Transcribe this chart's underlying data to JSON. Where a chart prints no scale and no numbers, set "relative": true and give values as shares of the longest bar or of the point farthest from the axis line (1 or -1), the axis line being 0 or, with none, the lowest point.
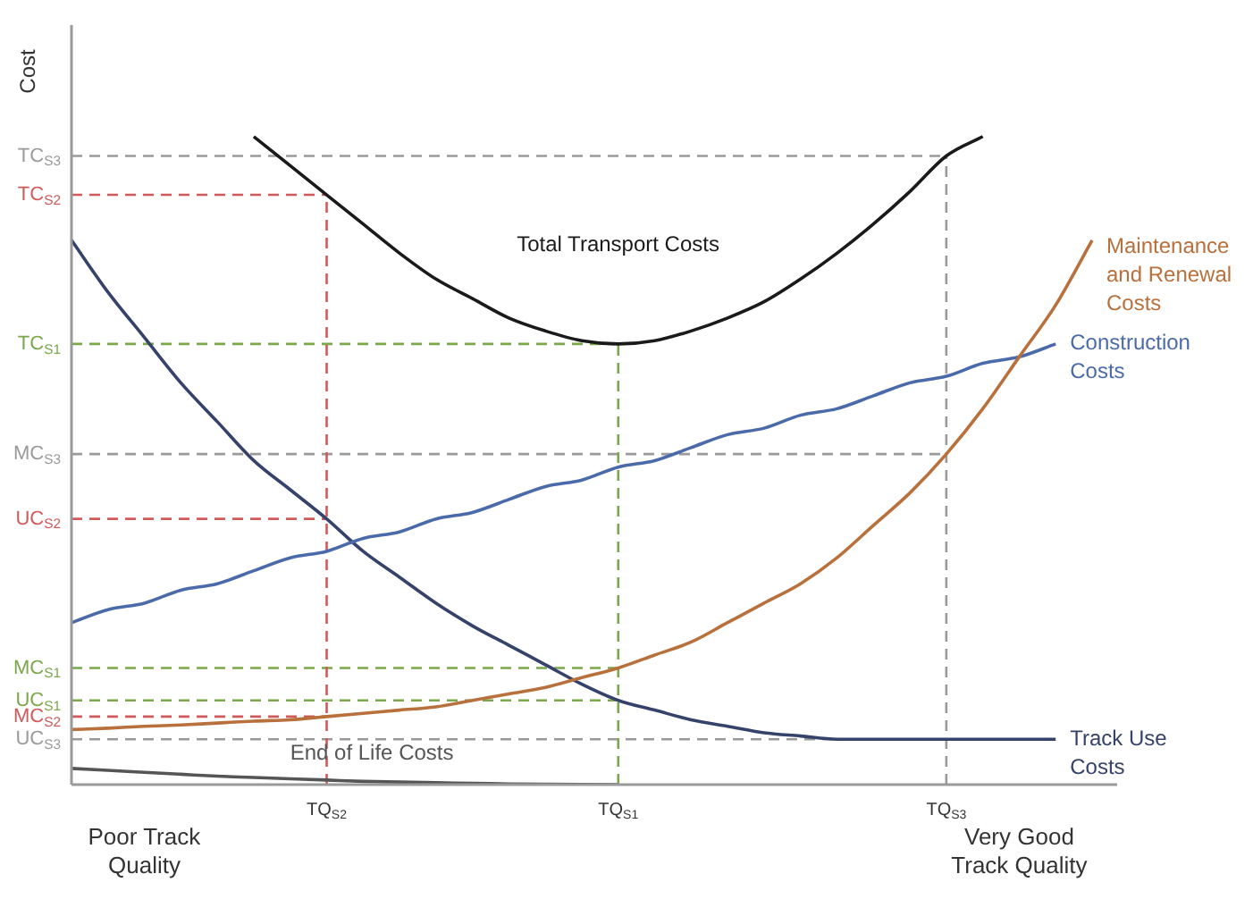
{
  "chart_data": {
    "type": "line",
    "relative": true,
    "ylabel": "Cost",
    "grid": false,
    "legend": false,
    "categories": [
      null,
      null,
      "Poor Track Quality",
      null,
      null,
      null,
      null,
      "TQ$_{S2}$",
      null,
      null,
      null,
      null,
      null,
      null,
      null,
      "TQ$_{S1}$",
      null,
      null,
      null,
      null,
      null,
      null,
      null,
      null,
      "TQ$_{S3}$",
      null,
      "Very Good Track Quality",
      null,
      null
    ],
    "series": [
      {
        "name": "Total Transport Costs",
        "color": "#1a1a1a",
        "values": [
          null,
          null,
          null,
          null,
          null,
          1.0,
          0.955,
          0.91,
          0.865,
          0.82,
          0.78,
          0.75,
          0.72,
          0.7,
          0.685,
          0.68,
          0.685,
          0.7,
          0.72,
          0.745,
          0.78,
          0.82,
          0.865,
          0.915,
          0.97,
          1.0,
          null,
          null,
          null
        ]
      },
      {
        "name": "Maintenance and Renewal Costs",
        "color": "#b8703c",
        "values": [
          0.085,
          0.087,
          0.09,
          0.092,
          0.095,
          0.098,
          0.1,
          0.105,
          0.11,
          0.115,
          0.12,
          0.13,
          0.14,
          0.15,
          0.165,
          0.18,
          0.2,
          0.22,
          0.25,
          0.28,
          0.31,
          0.35,
          0.4,
          0.45,
          0.51,
          0.58,
          0.66,
          0.74,
          0.84
        ]
      },
      {
        "name": "Construction Costs",
        "color": "#4a6aaa",
        "values": [
          0.25,
          0.27,
          0.28,
          0.3,
          0.31,
          0.33,
          0.35,
          0.36,
          0.38,
          0.39,
          0.41,
          0.42,
          0.44,
          0.46,
          0.47,
          0.49,
          0.5,
          0.52,
          0.54,
          0.55,
          0.57,
          0.58,
          0.6,
          0.62,
          0.63,
          0.65,
          0.66,
          0.68,
          null
        ]
      },
      {
        "name": "Track Use Costs",
        "color": "#35426a",
        "values": [
          0.84,
          0.76,
          0.69,
          0.62,
          0.56,
          0.5,
          0.455,
          0.41,
          0.36,
          0.32,
          0.28,
          0.245,
          0.215,
          0.185,
          0.155,
          0.13,
          0.115,
          0.1,
          0.09,
          0.08,
          0.075,
          0.07,
          0.07,
          0.07,
          0.07,
          0.07,
          0.07,
          0.07,
          null
        ]
      },
      {
        "name": "End of Life Costs",
        "color": "#555555",
        "values": [
          0.025,
          0.022,
          0.019,
          0.016,
          0.013,
          0.011,
          0.009,
          0.007,
          0.005,
          0.004,
          0.003,
          0.002,
          0.001,
          0.0005,
          0.0002,
          0,
          null,
          null,
          null,
          null,
          null,
          null,
          null,
          null,
          null,
          null,
          null,
          null,
          null
        ]
      }
    ],
    "ref_lines": [
      {
        "axis": "y",
        "value": 0.97,
        "label": "TC$_{S3}$",
        "color": "#9a9a9a",
        "line_style": "dashed"
      },
      {
        "axis": "y",
        "value": 0.91,
        "label": "TC$_{S2}$",
        "color": "#d05a5a",
        "line_style": "dashed"
      },
      {
        "axis": "y",
        "value": 0.68,
        "label": "TC$_{S1}$",
        "color": "#7aa84a",
        "line_style": "dashed"
      },
      {
        "axis": "y",
        "value": 0.51,
        "label": "MC$_{S3}$",
        "color": "#9a9a9a",
        "line_style": "dashed"
      },
      {
        "axis": "y",
        "value": 0.41,
        "label": "UC$_{S2}$",
        "color": "#d05a5a",
        "line_style": "dashed"
      },
      {
        "axis": "y",
        "value": 0.18,
        "label": "MC$_{S1}$",
        "color": "#7aa84a",
        "line_style": "dashed"
      },
      {
        "axis": "y",
        "value": 0.13,
        "label": "UC$_{S1}$",
        "color": "#7aa84a",
        "line_style": "dashed"
      },
      {
        "axis": "y",
        "value": 0.105,
        "label": "MC$_{S2}$",
        "color": "#d05a5a",
        "line_style": "dashed"
      },
      {
        "axis": "y",
        "value": 0.07,
        "label": "UC$_{S3}$",
        "color": "#9a9a9a",
        "line_style": "dashed"
      },
      {
        "axis": "x",
        "value": "TQ$_{S2}$",
        "color": "#d05a5a",
        "line_style": "dashed"
      },
      {
        "axis": "x",
        "value": "TQ$_{S1}$",
        "color": "#7aa84a",
        "line_style": "dashed"
      },
      {
        "axis": "x",
        "value": "TQ$_{S3}$",
        "color": "#9a9a9a",
        "line_style": "dashed"
      }
    ]
  }
}
